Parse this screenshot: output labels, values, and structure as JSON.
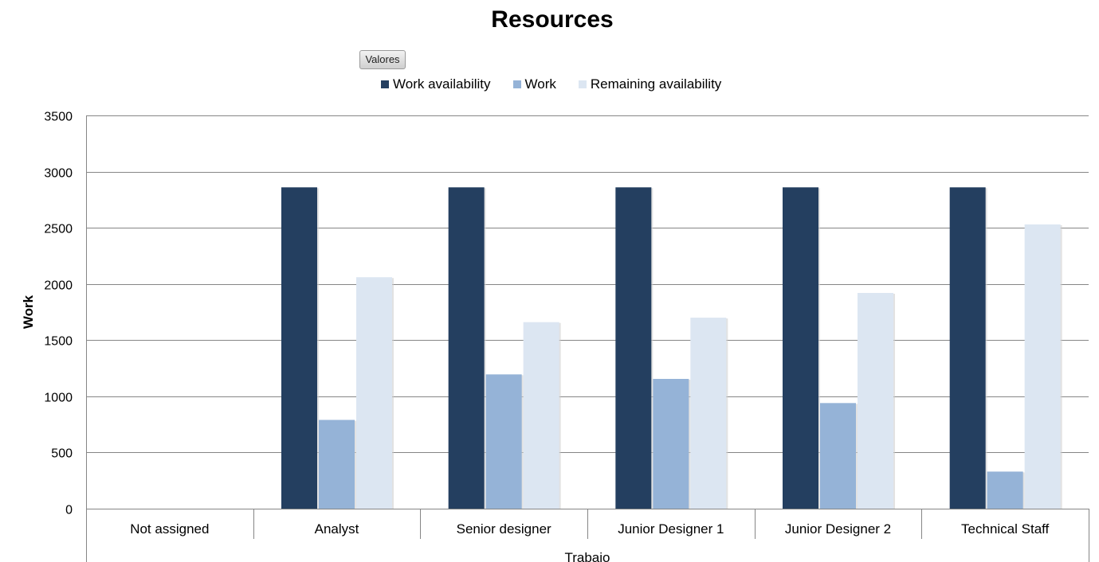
{
  "chart_data": {
    "type": "bar",
    "title": "Resources",
    "ylabel": "Work",
    "xlabel": "Trabajo",
    "ylim": [
      0,
      3500
    ],
    "yticks": [
      0,
      500,
      1000,
      1500,
      2000,
      2500,
      3000,
      3500
    ],
    "grid": "horizontal",
    "legend_position": "top",
    "categories": [
      "Not assigned",
      "Analyst",
      "Senior designer",
      "Junior Designer 1",
      "Junior Designer 2",
      "Technical Staff"
    ],
    "series": [
      {
        "name": "Work availability",
        "color": "#243f60",
        "values": [
          0,
          2860,
          2860,
          2860,
          2860,
          2860
        ]
      },
      {
        "name": "Work",
        "color": "#95b3d7",
        "values": [
          0,
          790,
          1195,
          1155,
          940,
          330
        ]
      },
      {
        "name": "Remaining availability",
        "color": "#dce6f2",
        "values": [
          0,
          2060,
          1660,
          1700,
          1920,
          2530
        ]
      }
    ]
  },
  "controls": {
    "field_button_label": "Valores"
  }
}
